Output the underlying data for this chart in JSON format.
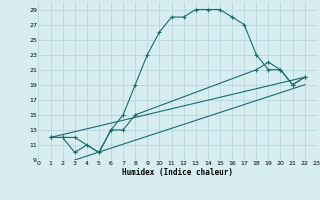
{
  "xlabel": "Humidex (Indice chaleur)",
  "background_color": "#d6eef0",
  "grid_color": "#b8d8dc",
  "line_color": "#1a6b6b",
  "xlim": [
    0,
    23
  ],
  "ylim": [
    9,
    30
  ],
  "xticks": [
    0,
    1,
    2,
    3,
    4,
    5,
    6,
    7,
    8,
    9,
    10,
    11,
    12,
    13,
    14,
    15,
    16,
    17,
    18,
    19,
    20,
    21,
    22,
    23
  ],
  "yticks": [
    9,
    11,
    13,
    15,
    17,
    19,
    21,
    23,
    25,
    27,
    29
  ],
  "line1_x": [
    1,
    2,
    3,
    4,
    5,
    6,
    7,
    8,
    9,
    10,
    11,
    12,
    13,
    14,
    15,
    16,
    17,
    18,
    19,
    20,
    21,
    22
  ],
  "line1_y": [
    12,
    12,
    10,
    11,
    10,
    13,
    15,
    19,
    23,
    26,
    28,
    28,
    29,
    29,
    29,
    28,
    27,
    23,
    21,
    21,
    19,
    20
  ],
  "line2_x": [
    1,
    2,
    3,
    5,
    6,
    7,
    8,
    18,
    19,
    20,
    21,
    22
  ],
  "line2_y": [
    12,
    12,
    12,
    10,
    13,
    13,
    15,
    21,
    22,
    21,
    19,
    20
  ],
  "line3_x": [
    1,
    22
  ],
  "line3_y": [
    12,
    20
  ],
  "line4_x": [
    3,
    22
  ],
  "line4_y": [
    9,
    19
  ]
}
